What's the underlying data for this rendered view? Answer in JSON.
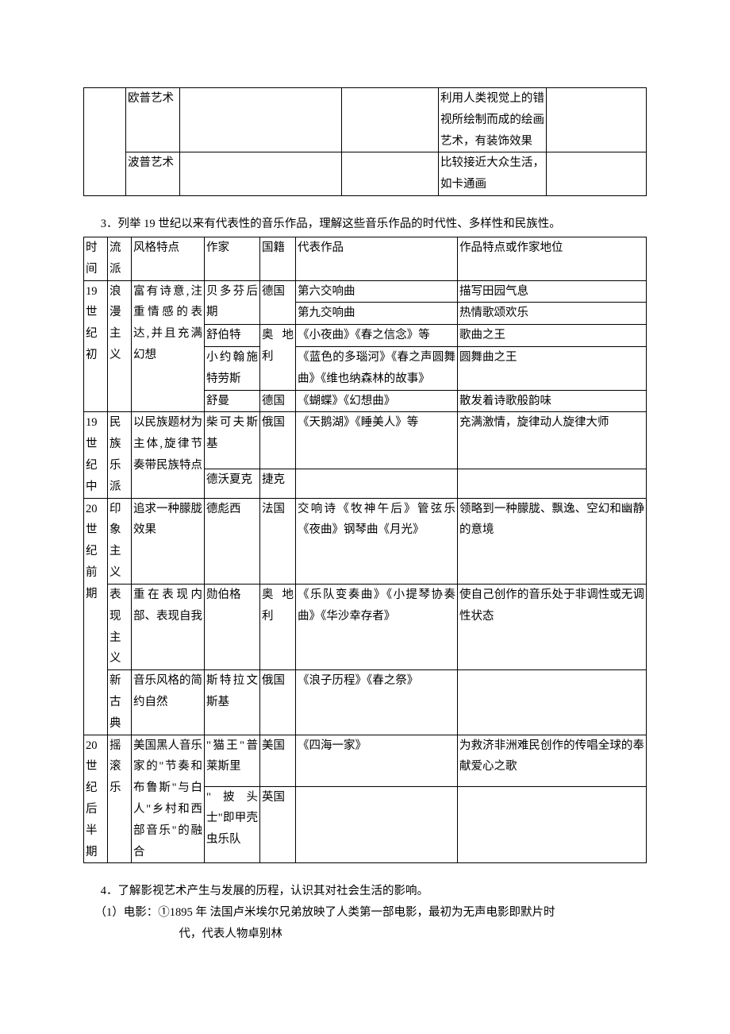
{
  "table1": {
    "rows": [
      {
        "a": "",
        "b": "欧普艺术",
        "c": "",
        "d": "",
        "e": "利用人类视觉上的错视所绘制而成的绘画艺术，有装饰效果",
        "f": ""
      },
      {
        "a": "",
        "b": "波普艺术",
        "c": "",
        "d": "",
        "e": "比较接近大众生活，如卡通画",
        "f": ""
      }
    ]
  },
  "heading3": "3．列举 19 世纪以来有代表性的音乐作品，理解这些音乐作品的时代性、多样性和民族性。",
  "table2": {
    "header": [
      "时间",
      "流派",
      "风格特点",
      "作家",
      "国籍",
      "代表作品",
      "作品特点或作家地位"
    ],
    "rows": [
      {
        "era": "19世纪初",
        "school": "浪漫主义",
        "style": "富有诗意,注重情感的表达,并且充满幻想",
        "items": [
          {
            "author": "贝多芬后期",
            "nation": "德国",
            "works": [
              {
                "title": "第六交响曲",
                "note": "描写田园气息"
              },
              {
                "title": "第九交响曲",
                "note": "热情歌颂欢乐"
              }
            ]
          },
          {
            "author": "舒伯特",
            "nation": "奥地利",
            "work": "《小夜曲》《春之信念》等",
            "note": "歌曲之王"
          },
          {
            "author": "小约翰施特劳斯",
            "nation": "",
            "work": "《蓝色的多瑙河》《春之声圆舞曲》《维也纳森林的故事》",
            "note": "圆舞曲之王"
          },
          {
            "author": "舒曼",
            "nation": "德国",
            "work": "《蝴蝶》《幻想曲》",
            "note": "散发着诗歌般韵味"
          }
        ]
      },
      {
        "era": "19世纪中",
        "school": "民族乐派",
        "style": "以民族题材为主体,旋律节奏带民族特点",
        "items": [
          {
            "author": "柴可夫斯基",
            "nation": "俄国",
            "work": "《天鹅湖》《睡美人》等",
            "note": "充满激情，旋律动人旋律大师"
          },
          {
            "author": "德沃夏克",
            "nation": "捷克",
            "work": "",
            "note": ""
          }
        ]
      },
      {
        "era": "20世纪前期",
        "groups": [
          {
            "school": "印象主义",
            "style": "追求一种朦胧效果",
            "author": "德彪西",
            "nation": "法国",
            "work": "交响诗《牧神午后》管弦乐《夜曲》钢琴曲《月光》",
            "note": "领略到一种朦胧、飘逸、空幻和幽静的意境"
          },
          {
            "school": "表现主义",
            "style": "重在表现内部、表现自我",
            "author": "勋伯格",
            "nation": "奥地利",
            "work": "《乐队变奏曲》《小提琴协奏曲》《华沙幸存者》",
            "note": "使自己创作的音乐处于非调性或无调性状态"
          },
          {
            "school": "新古典",
            "style": "音乐风格的简约自然",
            "author": "斯特拉文斯基",
            "nation": "俄国",
            "work": "《浪子历程》《春之祭》",
            "note": ""
          }
        ]
      },
      {
        "era": "20世纪后半期",
        "school": "摇滚乐",
        "style": "美国黑人音乐家的\"节奏和布鲁斯\"与白人\"乡村和西部音乐\"的融合",
        "items": [
          {
            "author": "\"猫王\"普莱斯里",
            "nation": "美国",
            "work": "《四海一家》",
            "note": "为救济非洲难民创作的传唱全球的奉献爱心之歌"
          },
          {
            "author": "\"披头士\"即甲壳虫乐队",
            "nation": "英国",
            "work": "",
            "note": ""
          }
        ]
      }
    ]
  },
  "heading4": "4．了解影视艺术产生与发展的历程，认识其对社会生活的影响。",
  "film": {
    "line1prefix": "（1）电影：①",
    "line1rest": "1895 年 法国卢米埃尔兄弟放映了人类第一部电影，最初为无声电影即默片时",
    "line2": "代，代表人物卓别林"
  },
  "style": {
    "font_family": "SimSun",
    "font_size_pt": 11,
    "text_color": "#000000",
    "border_color": "#000000",
    "background": "#ffffff"
  }
}
